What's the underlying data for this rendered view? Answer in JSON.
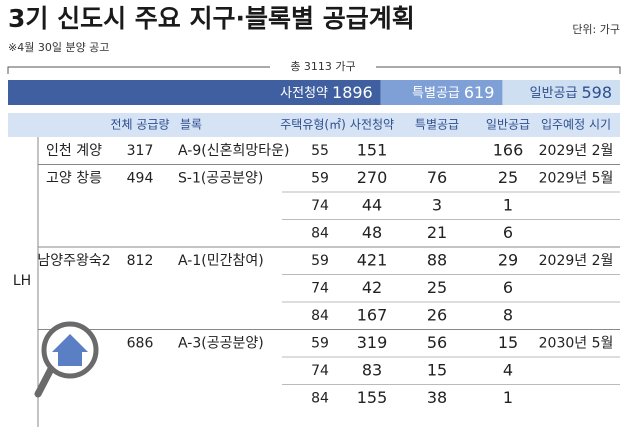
{
  "header": {
    "title": "3기 신도시 주요 지구·블록별 공급계획",
    "unit": "단위: 가구",
    "note": "※4월 30일 분양 공고"
  },
  "summary": {
    "total": "총 3113 가구",
    "segments": [
      {
        "label": "사전청약",
        "value": 1896
      },
      {
        "label": "특별공급",
        "value": 619
      },
      {
        "label": "일반공급",
        "value": 598
      }
    ]
  },
  "table": {
    "columns": [
      "전체 공급량",
      "블록",
      "주택유형(㎡)",
      "사전청약",
      "특별공급",
      "일반공급",
      "입주예정 시기"
    ],
    "group": "LH",
    "rows": [
      {
        "district": "인천 계양",
        "total": 317,
        "block": "A-9(신혼희망타운)",
        "type": 55,
        "pre": 151,
        "general": 166,
        "move_in": "2029년 2월"
      },
      {
        "district": "고양 창릉",
        "total": 494,
        "block": "S-1(공공분양)",
        "type": 59,
        "pre": 270,
        "special": 76,
        "general": 25,
        "move_in": "2029년 5월"
      },
      {
        "type": 74,
        "pre": 44,
        "special": 3,
        "general": 1
      },
      {
        "type": 84,
        "pre": 48,
        "special": 21,
        "general": 6
      },
      {
        "district": "남양주왕숙2",
        "total": 812,
        "block": "A-1(민간참여)",
        "type": 59,
        "pre": 421,
        "special": 88,
        "general": 29,
        "move_in": "2029년 2월"
      },
      {
        "type": 74,
        "pre": 42,
        "special": 25,
        "general": 6
      },
      {
        "type": 84,
        "pre": 167,
        "special": 26,
        "general": 8
      },
      {
        "total": 686,
        "block": "A-3(공공분양)",
        "type": 59,
        "pre": 319,
        "special": 56,
        "general": 15,
        "move_in": "2030년 5월"
      },
      {
        "type": 74,
        "pre": 83,
        "special": 15,
        "general": 4
      },
      {
        "type": 84,
        "pre": 155,
        "special": 38,
        "general": 1
      }
    ]
  }
}
